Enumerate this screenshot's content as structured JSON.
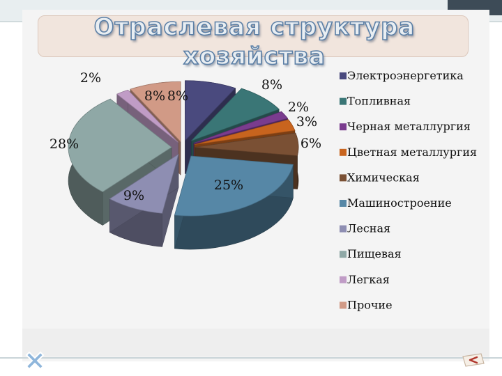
{
  "slide": {
    "title_line1": "Отраслевая структура",
    "title_line2": "хозяйства",
    "title_color": "#5b7fa6"
  },
  "icons": {
    "corner_cross": "cross-icon",
    "nav_arrow": "return-arrow-icon"
  },
  "chart_data": {
    "type": "pie",
    "style": "3d-exploded",
    "categories": [
      "Электроэнергетика",
      "Топливная",
      "Черная металлургия",
      "Цветная металлургия",
      "Химическая",
      "Машиностроение",
      "Лесная",
      "Пищевая",
      "Легкая",
      "Прочие"
    ],
    "values": [
      8,
      8,
      2,
      3,
      6,
      25,
      9,
      28,
      2,
      8
    ],
    "data_labels": [
      "8%",
      "8%",
      "2%",
      "3%",
      "6%",
      "25%",
      "9%",
      "28%",
      "2%",
      "8%"
    ],
    "colors": [
      "#4a4a7e",
      "#3a7676",
      "#7a3c8e",
      "#c8641e",
      "#7a5034",
      "#5687a6",
      "#8e8eb2",
      "#8fa8a6",
      "#c09cc6",
      "#d19a86"
    ],
    "legend_position": "right",
    "title": ""
  }
}
